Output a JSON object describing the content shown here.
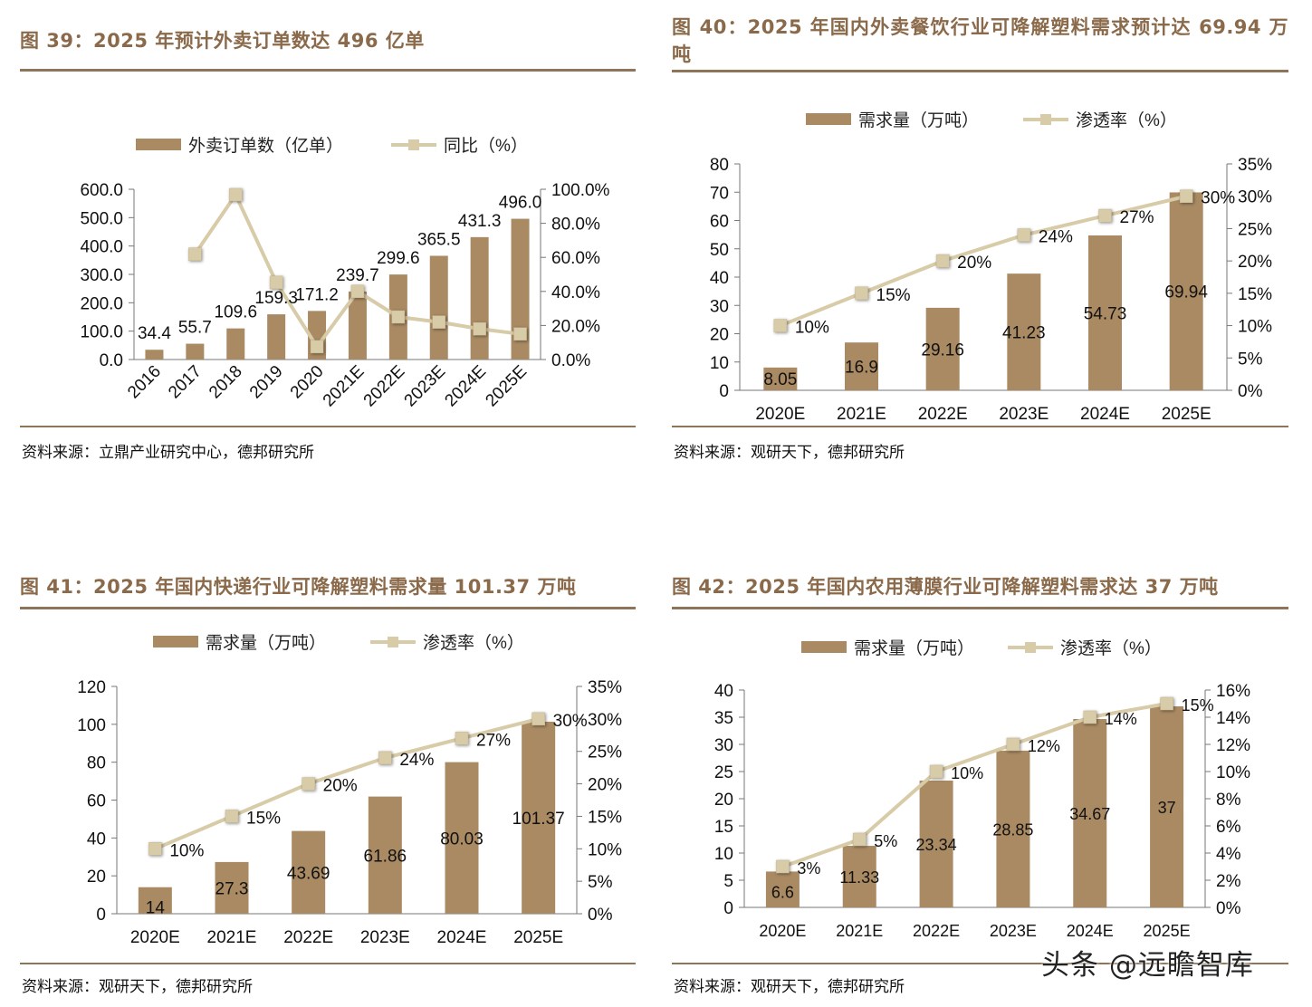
{
  "panels": [
    {
      "title": "图 39：2025 年预计外卖订单数达 496 亿单",
      "source": "资料来源：立鼎产业研究中心，德邦研究所",
      "chart_data": {
        "type": "bar",
        "categories": [
          "2016",
          "2017",
          "2018",
          "2019",
          "2020",
          "2021E",
          "2022E",
          "2023E",
          "2024E",
          "2025E"
        ],
        "series": [
          {
            "name": "外卖订单数（亿单）",
            "type": "bar",
            "axis": "left",
            "values": [
              34.4,
              55.7,
              109.6,
              159.3,
              171.2,
              239.7,
              299.6,
              365.5,
              431.3,
              496.0
            ],
            "labels": [
              "34.4",
              "55.7",
              "109.6",
              "159.3",
              "171.2",
              "239.7",
              "299.6",
              "365.5",
              "431.3",
              "496.0"
            ]
          },
          {
            "name": "同比（%）",
            "type": "line",
            "axis": "right",
            "values": [
              null,
              61.9,
              96.8,
              45.3,
              7.5,
              40.0,
              25.0,
              22.0,
              18.0,
              15.0
            ]
          }
        ],
        "yleft": {
          "min": 0,
          "max": 600,
          "ticks": [
            "0.0",
            "100.0",
            "200.0",
            "300.0",
            "400.0",
            "500.0",
            "600.0"
          ]
        },
        "yright": {
          "min": 0,
          "max": 100,
          "ticks": [
            "0.0%",
            "20.0%",
            "40.0%",
            "60.0%",
            "80.0%",
            "100.0%"
          ]
        },
        "legend": "top",
        "rotate_x": true,
        "colors": {
          "bar": "#a98a63",
          "line": "#d8cba8"
        }
      }
    },
    {
      "title": "图 40：2025 年国内外卖餐饮行业可降解塑料需求预计达 69.94 万吨",
      "source": "资料来源：观研天下，德邦研究所",
      "chart_data": {
        "type": "bar",
        "categories": [
          "2020E",
          "2021E",
          "2022E",
          "2023E",
          "2024E",
          "2025E"
        ],
        "series": [
          {
            "name": "需求量（万吨）",
            "type": "bar",
            "axis": "left",
            "values": [
              8.05,
              16.9,
              29.16,
              41.23,
              54.73,
              69.94
            ],
            "labels": [
              "8.05",
              "16.9",
              "29.16",
              "41.23",
              "54.73",
              "69.94"
            ]
          },
          {
            "name": "渗透率（%）",
            "type": "line",
            "axis": "right",
            "values": [
              10,
              15,
              20,
              24,
              27,
              30
            ],
            "labels": [
              "10%",
              "15%",
              "20%",
              "24%",
              "27%",
              "30%"
            ]
          }
        ],
        "yleft": {
          "min": 0,
          "max": 80,
          "ticks": [
            "0",
            "10",
            "20",
            "30",
            "40",
            "50",
            "60",
            "70",
            "80"
          ]
        },
        "yright": {
          "min": 0,
          "max": 35,
          "ticks": [
            "0%",
            "5%",
            "10%",
            "15%",
            "20%",
            "25%",
            "30%",
            "35%"
          ]
        },
        "legend": "top",
        "colors": {
          "bar": "#a98a63",
          "line": "#d8cba8"
        }
      }
    },
    {
      "title": "图 41：2025 年国内快递行业可降解塑料需求量 101.37 万吨",
      "source": "资料来源：观研天下，德邦研究所",
      "chart_data": {
        "type": "bar",
        "categories": [
          "2020E",
          "2021E",
          "2022E",
          "2023E",
          "2024E",
          "2025E"
        ],
        "series": [
          {
            "name": "需求量（万吨）",
            "type": "bar",
            "axis": "left",
            "values": [
              14,
              27.3,
              43.69,
              61.86,
              80.03,
              101.37
            ],
            "labels": [
              "14",
              "27.3",
              "43.69",
              "61.86",
              "80.03",
              "101.37"
            ]
          },
          {
            "name": "渗透率（%）",
            "type": "line",
            "axis": "right",
            "values": [
              10,
              15,
              20,
              24,
              27,
              30
            ],
            "labels": [
              "10%",
              "15%",
              "20%",
              "24%",
              "27%",
              "30%"
            ]
          }
        ],
        "yleft": {
          "min": 0,
          "max": 120,
          "ticks": [
            "0",
            "20",
            "40",
            "60",
            "80",
            "100",
            "120"
          ]
        },
        "yright": {
          "min": 0,
          "max": 35,
          "ticks": [
            "0%",
            "5%",
            "10%",
            "15%",
            "20%",
            "25%",
            "30%",
            "35%"
          ]
        },
        "legend": "top",
        "colors": {
          "bar": "#a98a63",
          "line": "#d8cba8"
        }
      }
    },
    {
      "title": "图 42：2025 年国内农用薄膜行业可降解塑料需求达 37 万吨",
      "source": "资料来源：观研天下，德邦研究所",
      "chart_data": {
        "type": "bar",
        "categories": [
          "2020E",
          "2021E",
          "2022E",
          "2023E",
          "2024E",
          "2025E"
        ],
        "series": [
          {
            "name": "需求量（万吨）",
            "type": "bar",
            "axis": "left",
            "values": [
              6.6,
              11.33,
              23.34,
              28.85,
              34.67,
              37
            ],
            "labels": [
              "6.6",
              "11.33",
              "23.34",
              "28.85",
              "34.67",
              "37"
            ]
          },
          {
            "name": "渗透率（%）",
            "type": "line",
            "axis": "right",
            "values": [
              3,
              5,
              10,
              12,
              14,
              15
            ],
            "labels": [
              "3%",
              "5%",
              "10%",
              "12%",
              "14%",
              "15%"
            ]
          }
        ],
        "yleft": {
          "min": 0,
          "max": 40,
          "ticks": [
            "0",
            "5",
            "10",
            "15",
            "20",
            "25",
            "30",
            "35",
            "40"
          ]
        },
        "yright": {
          "min": 0,
          "max": 16,
          "ticks": [
            "0%",
            "2%",
            "4%",
            "6%",
            "8%",
            "10%",
            "12%",
            "14%",
            "16%"
          ]
        },
        "legend": "top",
        "colors": {
          "bar": "#a98a63",
          "line": "#d8cba8"
        }
      }
    }
  ],
  "watermark": "头条 @远瞻智库"
}
